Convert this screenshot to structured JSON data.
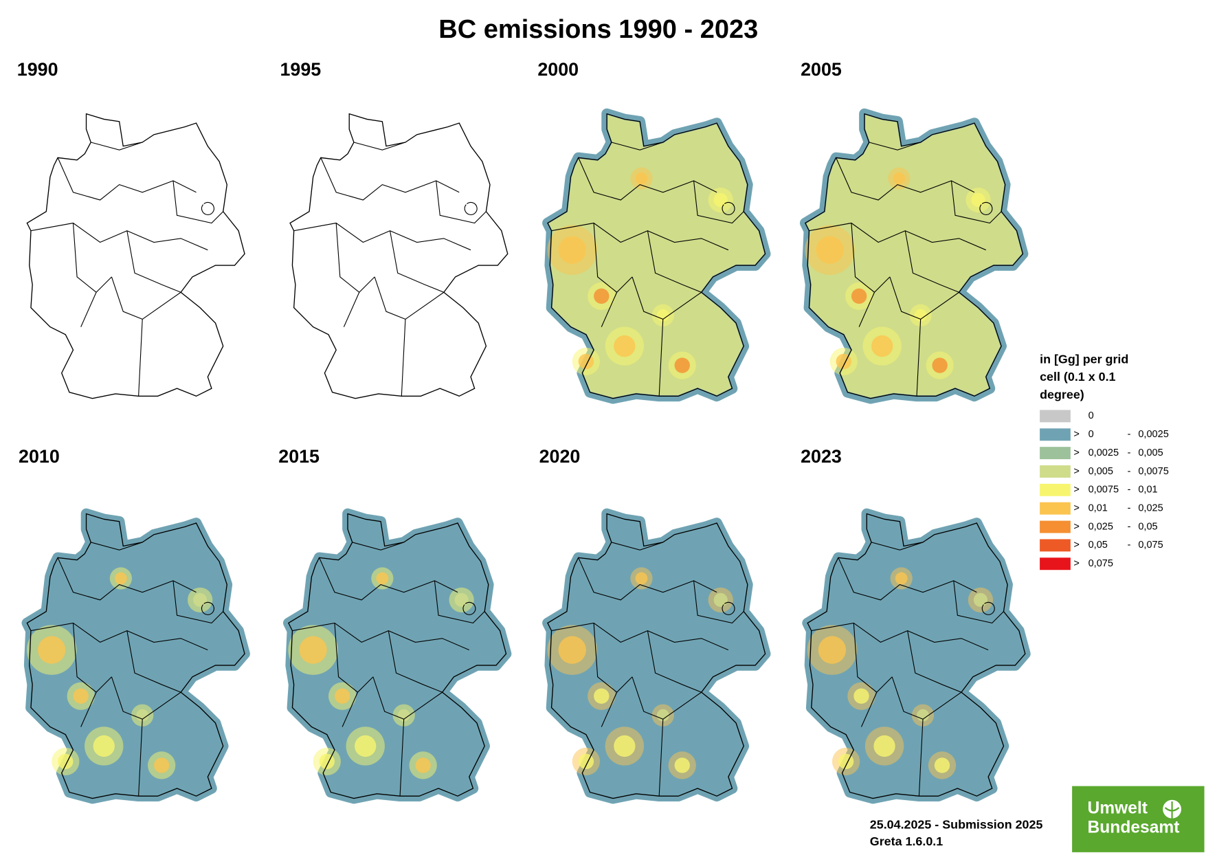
{
  "title": "BC emissions 1990 - 2023",
  "panels": [
    {
      "year": "1990",
      "style": "outline"
    },
    {
      "year": "1995",
      "style": "outline"
    },
    {
      "year": "2000",
      "style": "high"
    },
    {
      "year": "2005",
      "style": "high"
    },
    {
      "year": "2010",
      "style": "mid"
    },
    {
      "year": "2015",
      "style": "mid"
    },
    {
      "year": "2020",
      "style": "low"
    },
    {
      "year": "2023",
      "style": "low"
    }
  ],
  "legend": {
    "title_lines": [
      "in [Gg] per grid",
      "cell (0.1 x 0.1",
      "degree)"
    ],
    "entries": [
      {
        "color": "#c8c8c8",
        "from": "0"
      },
      {
        "color": "#6fa3b3",
        "sign": ">",
        "from": "0",
        "dash": "-",
        "to": "0,0025"
      },
      {
        "color": "#9dc19a",
        "sign": ">",
        "from": "0,0025",
        "dash": "-",
        "to": "0,005"
      },
      {
        "color": "#cfdc8a",
        "sign": ">",
        "from": "0,005",
        "dash": "-",
        "to": "0,0075"
      },
      {
        "color": "#f7f56e",
        "sign": ">",
        "from": "0,0075",
        "dash": "-",
        "to": "0,01"
      },
      {
        "color": "#fbc44f",
        "sign": ">",
        "from": "0,01",
        "dash": "-",
        "to": "0,025"
      },
      {
        "color": "#f58f31",
        "sign": ">",
        "from": "0,025",
        "dash": "-",
        "to": "0,05"
      },
      {
        "color": "#ee5a25",
        "sign": ">",
        "from": "0,05",
        "dash": "-",
        "to": "0,075"
      },
      {
        "color": "#e8141b",
        "sign": ">",
        "from": "0,075"
      }
    ]
  },
  "footer": {
    "line1": "25.04.2025 - Submission 2025",
    "line2": "Greta 1.6.0.1"
  },
  "logo": {
    "line1": "Umwelt",
    "line2": "Bundesamt"
  }
}
